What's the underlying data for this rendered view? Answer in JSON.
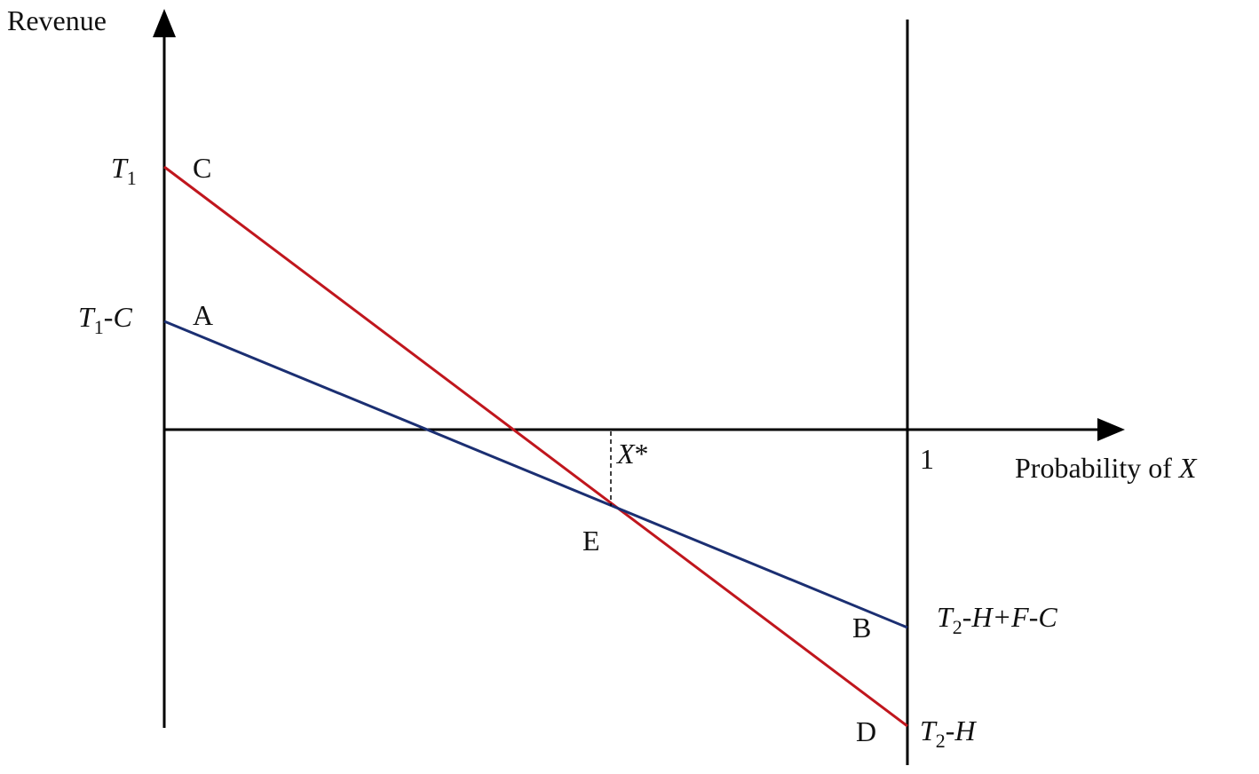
{
  "axes": {
    "y_label": "Revenue",
    "x_label": "Probability of ",
    "x_label_var": "X",
    "x_tick_one": "1"
  },
  "colors": {
    "red_line": "#c0161d",
    "blue_line": "#1b2f72",
    "axis": "#000000"
  },
  "y_left_labels": {
    "t1": {
      "main": "T",
      "sub": "1",
      "rest": ""
    },
    "t1c": {
      "main": "T",
      "sub": "1",
      "rest": "-C"
    }
  },
  "y_right_labels": {
    "t2hfc": {
      "main": "T",
      "sub": "2",
      "rest": "-H+F-C"
    },
    "t2h": {
      "main": "T",
      "sub": "2",
      "rest": "-H"
    }
  },
  "points": {
    "A": "A",
    "B": "B",
    "C": "C",
    "D": "D",
    "E": "E"
  },
  "threshold": {
    "main": "X",
    "rest": "*"
  }
}
